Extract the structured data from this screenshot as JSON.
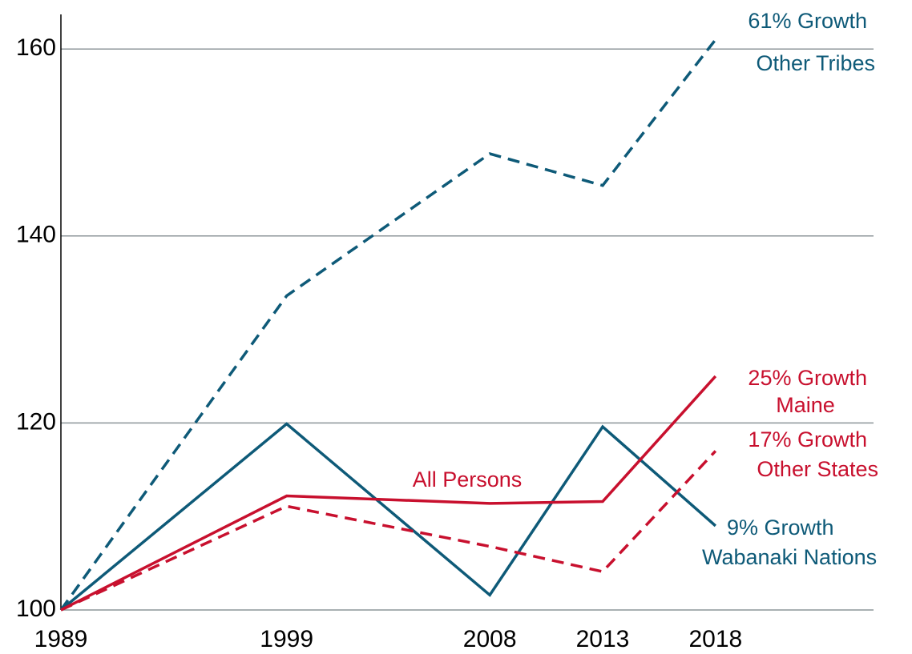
{
  "chart_data": {
    "type": "line",
    "x": [
      1989,
      1999,
      2008,
      2013,
      2018
    ],
    "xlim": [
      1989,
      2025
    ],
    "xticks": [
      1989,
      1999,
      2008,
      2013,
      2018
    ],
    "ylim": [
      100,
      163.7
    ],
    "yticks": [
      100,
      120,
      140,
      160
    ],
    "grid": true,
    "series": [
      {
        "name": "Other Tribes",
        "color": "#0e5a78",
        "dashed": true,
        "values": [
          100,
          133.6,
          148.8,
          145.4,
          161
        ]
      },
      {
        "name": "Wabanaki Nations",
        "color": "#0e5a78",
        "dashed": false,
        "values": [
          100,
          119.9,
          101.6,
          119.6,
          109
        ]
      },
      {
        "name": "Maine",
        "color": "#c8102e",
        "dashed": false,
        "values": [
          100,
          112.2,
          111.4,
          111.6,
          125
        ]
      },
      {
        "name": "Other States",
        "color": "#c8102e",
        "dashed": true,
        "values": [
          100,
          111.1,
          106.8,
          104.1,
          117
        ]
      }
    ],
    "annotations": [
      "61% Growth",
      "25% Growth",
      "17% Growth",
      "9% Growth",
      "All Persons"
    ]
  }
}
